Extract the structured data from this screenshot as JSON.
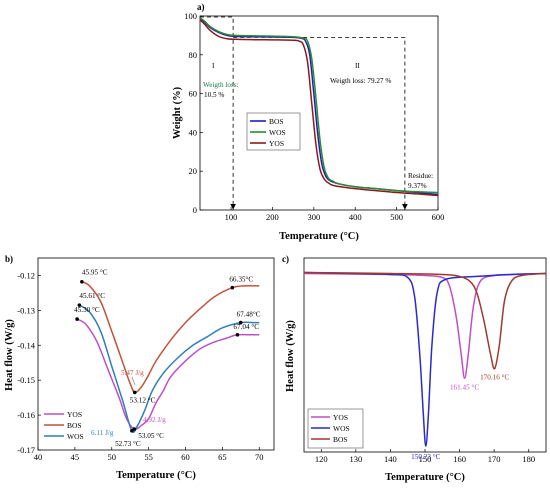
{
  "chart_data": [
    {
      "panel": "a)",
      "type": "line",
      "xlabel": "Temperature (°C)",
      "ylabel": "Weight (%)",
      "xlim": [
        25,
        600
      ],
      "ylim": [
        0,
        100
      ],
      "xticks": [
        100,
        200,
        300,
        400,
        500,
        600
      ],
      "yticks": [
        0,
        20,
        40,
        60,
        80,
        100
      ],
      "legend": {
        "placement": "left-middle",
        "entries": [
          "BOS",
          "WOS",
          "YOS"
        ]
      },
      "series": [
        {
          "name": "BOS",
          "color": "#1f1fbf",
          "x": [
            25,
            35,
            50,
            70,
            90,
            110,
            150,
            200,
            250,
            270,
            280,
            290,
            300,
            310,
            320,
            330,
            340,
            360,
            400,
            450,
            500,
            550,
            600
          ],
          "y": [
            98.5,
            97,
            94,
            91.5,
            90,
            89.5,
            89.3,
            89.2,
            89,
            88.5,
            87,
            80,
            60,
            38,
            23,
            17,
            15,
            13.5,
            12,
            11,
            10,
            9,
            8
          ]
        },
        {
          "name": "WOS",
          "color": "#2e8b2e",
          "x": [
            25,
            35,
            50,
            70,
            90,
            110,
            150,
            200,
            250,
            275,
            285,
            295,
            305,
            315,
            325,
            335,
            345,
            360,
            400,
            450,
            500,
            550,
            600
          ],
          "y": [
            99,
            97.5,
            94.5,
            92,
            90.5,
            90,
            89.8,
            89.6,
            89.3,
            88.6,
            87,
            78,
            58,
            36,
            22,
            16.5,
            15,
            13.5,
            12,
            11,
            10,
            9.4,
            9
          ]
        },
        {
          "name": "YOS",
          "color": "#8b1a1a",
          "x": [
            25,
            35,
            50,
            70,
            90,
            110,
            150,
            200,
            250,
            265,
            275,
            285,
            295,
            305,
            315,
            325,
            335,
            350,
            400,
            450,
            500,
            550,
            600
          ],
          "y": [
            98,
            96,
            92.5,
            89.5,
            88.3,
            88,
            87.8,
            87.7,
            87.5,
            87,
            85,
            76,
            55,
            34,
            21,
            16,
            14,
            12.5,
            11,
            10,
            9,
            8.3,
            7.5
          ]
        }
      ],
      "annotations": {
        "stage1": "I",
        "stage1_text": "Weigth loss:",
        "stage1_value": "10.5 %",
        "stage2": "II",
        "stage2_text": "Weigth loss: 79.27 %",
        "residue_text": "Residue:",
        "residue_value": "9.37%",
        "stage1_end_temp": 105,
        "stage2_end_temp": 520
      }
    },
    {
      "panel": "b)",
      "type": "line",
      "xlabel": "Temperature (°C)",
      "ylabel": "Heat flow (W/g)",
      "xlim": [
        40,
        72
      ],
      "ylim": [
        -0.17,
        -0.115
      ],
      "xticks": [
        40,
        45,
        50,
        55,
        60,
        65,
        70
      ],
      "yticks": [
        -0.17,
        -0.16,
        -0.15,
        -0.14,
        -0.13,
        -0.12
      ],
      "legend": {
        "placement": "bottom-left",
        "entries": [
          "YOS",
          "BOS",
          "WOS"
        ]
      },
      "series": [
        {
          "name": "YOS",
          "color": "#c04fc7",
          "x": [
            45.3,
            46.5,
            48,
            49.5,
            51,
            52,
            53.05,
            54,
            55,
            56,
            57,
            58,
            60,
            62,
            64,
            65.5,
            67.04,
            69,
            70
          ],
          "y": [
            -0.1325,
            -0.134,
            -0.139,
            -0.147,
            -0.155,
            -0.161,
            -0.164,
            -0.163,
            -0.161,
            -0.1565,
            -0.153,
            -0.149,
            -0.1445,
            -0.141,
            -0.139,
            -0.138,
            -0.137,
            -0.137,
            -0.137
          ]
        },
        {
          "name": "BOS",
          "color": "#c0543b",
          "x": [
            45.95,
            47,
            48.5,
            50,
            51.5,
            52.5,
            53.12,
            54,
            55,
            56,
            58,
            60,
            62,
            64,
            66.35,
            68,
            70
          ],
          "y": [
            -0.1218,
            -0.123,
            -0.1275,
            -0.136,
            -0.145,
            -0.151,
            -0.1535,
            -0.152,
            -0.1485,
            -0.1445,
            -0.1385,
            -0.1335,
            -0.1295,
            -0.126,
            -0.1235,
            -0.123,
            -0.123
          ]
        },
        {
          "name": "WOS",
          "color": "#2f7fb8",
          "x": [
            45.61,
            47,
            48.5,
            50,
            51.5,
            52.73,
            53.5,
            54.5,
            55.5,
            57,
            59,
            61,
            63,
            65,
            67.48,
            69,
            70
          ],
          "y": [
            -0.1285,
            -0.1305,
            -0.136,
            -0.146,
            -0.156,
            -0.1645,
            -0.163,
            -0.1585,
            -0.153,
            -0.148,
            -0.1435,
            -0.14,
            -0.1375,
            -0.135,
            -0.1335,
            -0.1335,
            -0.1335
          ]
        }
      ],
      "annotations": {
        "points": [
          {
            "label": "45.95 °C",
            "x": 45.95,
            "y": -0.1218
          },
          {
            "label": "45.61 °C",
            "x": 45.61,
            "y": -0.1285
          },
          {
            "label": "45.30 °C",
            "x": 45.3,
            "y": -0.1325
          },
          {
            "label": "66.35°C",
            "x": 66.35,
            "y": -0.1235
          },
          {
            "label": "67.48°C",
            "x": 67.48,
            "y": -0.1335
          },
          {
            "label": "67.04 °C",
            "x": 67.04,
            "y": -0.137
          },
          {
            "label": "53.12 °C",
            "x": 53.12,
            "y": -0.1535
          },
          {
            "label": "53.05 °C",
            "x": 53.05,
            "y": -0.164
          },
          {
            "label": "52.73 °C",
            "x": 52.73,
            "y": -0.1645
          }
        ],
        "enthalpy_bos": "5.47 J/g",
        "enthalpy_yos": "4.92 J/g",
        "enthalpy_wos": "6.11 J/g"
      }
    },
    {
      "panel": "c)",
      "type": "line",
      "xlabel": "Temperature (°C)",
      "ylabel": "Heat flow (W/g)",
      "xlim": [
        115,
        185
      ],
      "ylim": [
        0,
        1
      ],
      "xticks": [
        120,
        130,
        140,
        150,
        160,
        170,
        180
      ],
      "legend": {
        "placement": "bottom-left",
        "entries": [
          "YOS",
          "WOS",
          "BOS"
        ]
      },
      "series": [
        {
          "name": "YOS",
          "color": "#c04fc7",
          "x": [
            115,
            140,
            150,
            155,
            157,
            159,
            160.5,
            161.45,
            162.5,
            164,
            166,
            170,
            175,
            185
          ],
          "y": [
            0.92,
            0.915,
            0.91,
            0.9,
            0.86,
            0.7,
            0.5,
            0.38,
            0.5,
            0.75,
            0.88,
            0.91,
            0.915,
            0.92
          ]
        },
        {
          "name": "WOS",
          "color": "#2a2ad0",
          "x": [
            115,
            130,
            140,
            145,
            147,
            148.5,
            149.5,
            150.23,
            151,
            152,
            153.5,
            156,
            165,
            175,
            185
          ],
          "y": [
            0.925,
            0.92,
            0.915,
            0.9,
            0.8,
            0.5,
            0.2,
            0.03,
            0.2,
            0.55,
            0.82,
            0.89,
            0.905,
            0.915,
            0.92
          ]
        },
        {
          "name": "BOS",
          "color": "#a13a2a",
          "x": [
            115,
            140,
            155,
            160,
            163,
            165,
            167,
            169,
            170.16,
            171.5,
            173,
            175,
            178,
            185
          ],
          "y": [
            0.925,
            0.92,
            0.915,
            0.905,
            0.88,
            0.82,
            0.68,
            0.5,
            0.43,
            0.55,
            0.78,
            0.88,
            0.91,
            0.92
          ]
        }
      ],
      "annotations": {
        "peaks": [
          {
            "label": "150.23 °C",
            "x": 150.23,
            "y": 0.03,
            "color": "#2a2ad0"
          },
          {
            "label": "161.45 °C",
            "x": 161.45,
            "y": 0.38,
            "color": "#c04fc7"
          },
          {
            "label": "170.16 °C",
            "x": 170.16,
            "y": 0.43,
            "color": "#a13a2a"
          }
        ]
      }
    }
  ]
}
